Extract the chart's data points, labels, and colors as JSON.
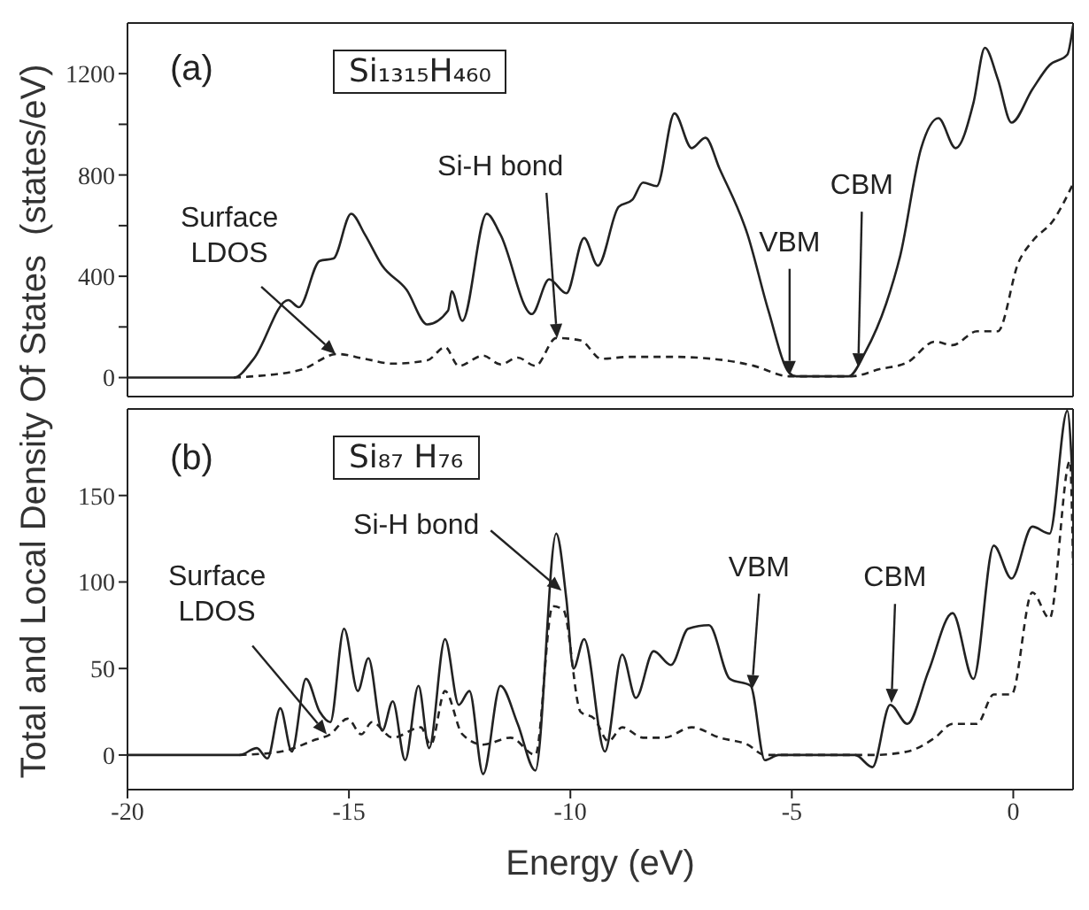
{
  "chart_data": [
    {
      "type": "line",
      "ylabel": "Total and Local Density Of States  (states/eV)",
      "xlim": [
        -20,
        1.35
      ],
      "xticks": [
        -20,
        -15,
        -10,
        -5,
        0
      ],
      "ylim": [
        -75,
        1400
      ],
      "yticks": [
        0,
        {
          "value": 200,
          "label": null
        },
        400,
        {
          "value": 600,
          "label": null
        },
        800,
        {
          "value": 1000,
          "label": null
        },
        1200
      ],
      "tick_labels": "y",
      "annotations": [
        "(a)",
        "Si₁₃₁₅H₄₆₀",
        {
          "text": "Surface\nLDOS",
          "x": -15.3,
          "y": 93
        },
        {
          "text": "Si-H  bond",
          "x": -10.3,
          "y": 156
        },
        {
          "text": "VBM",
          "x": -5.05,
          "y": 10
        },
        {
          "text": "CBM",
          "x": -3.5,
          "y": 40
        }
      ],
      "series": [
        {
          "color": "#222222",
          "line_style": "solid",
          "x": [
            -20,
            -17.6,
            -17.15,
            -16.37,
            -16.13,
            -15.66,
            -15.35,
            -14.95,
            -14.64,
            -14.25,
            -13.7,
            -13.23,
            -12.76,
            -12.68,
            -12.44,
            -11.89,
            -11.58,
            -10.87,
            -10.48,
            -10.09,
            -9.69,
            -9.38,
            -8.91,
            -8.6,
            -8.36,
            -8.05,
            -7.65,
            -7.26,
            -6.95,
            -6.63,
            -6.0,
            -5.53,
            -5.06,
            -4.9,
            -3.72,
            -3.34,
            -2.87,
            -2.55,
            -2.08,
            -1.69,
            -1.3,
            -0.9,
            -0.64,
            -0.35,
            -0.04,
            0.43,
            0.82,
            1.22,
            1.35
          ],
          "values": [
            0,
            0,
            74,
            306,
            278,
            461,
            470,
            647,
            565,
            442,
            347,
            210,
            265,
            341,
            224,
            647,
            565,
            251,
            388,
            333,
            551,
            442,
            674,
            702,
            770,
            756,
            1043,
            906,
            947,
            824,
            565,
            265,
            19,
            5,
            5,
            101,
            292,
            483,
            906,
            1024,
            906,
            1084,
            1302,
            1179,
            1007,
            1138,
            1234,
            1275,
            1390
          ]
        },
        {
          "color": "#222222",
          "line_style": "dashed",
          "x": [
            -17.6,
            -17.15,
            -16.05,
            -15.27,
            -14.64,
            -14.01,
            -13.23,
            -12.83,
            -12.52,
            -11.97,
            -11.58,
            -11.19,
            -10.79,
            -10.32,
            -9.77,
            -9.3,
            -8.67,
            -7.73,
            -6.79,
            -5.85,
            -5.06,
            -3.65,
            -3.02,
            -2.39,
            -1.77,
            -1.37,
            -0.82,
            -0.35,
            0.12,
            0.43,
            0.9,
            1.35
          ],
          "values": [
            0,
            5,
            33,
            93,
            74,
            55,
            68,
            120,
            46,
            87,
            52,
            79,
            46,
            156,
            147,
            74,
            82,
            82,
            74,
            46,
            5,
            5,
            33,
            60,
            142,
            128,
            183,
            183,
            456,
            538,
            620,
            765
          ]
        }
      ]
    },
    {
      "type": "line",
      "xlabel": "Energy  (eV)",
      "xlim": [
        -20,
        1.35
      ],
      "xticks": [
        -20,
        -15,
        -10,
        -5,
        0
      ],
      "ylim": [
        -20,
        200
      ],
      "yticks": [
        0,
        50,
        100,
        150
      ],
      "annotations": [
        "(b)",
        "Si₈₇ H₇₆",
        {
          "text": "Surface\nLDOS",
          "x": -15.5,
          "y": 12
        },
        {
          "text": "Si-H  bond",
          "x": -10.2,
          "y": 95
        },
        {
          "text": "VBM",
          "x": -5.9,
          "y": 38
        },
        {
          "text": "CBM",
          "x": -2.75,
          "y": 30
        }
      ],
      "series": [
        {
          "color": "#222222",
          "line_style": "solid",
          "x": [
            -20,
            -17.47,
            -17.08,
            -16.84,
            -16.55,
            -16.29,
            -15.97,
            -15.66,
            -15.42,
            -15.11,
            -14.8,
            -14.56,
            -14.25,
            -14.01,
            -13.73,
            -13.43,
            -13.19,
            -12.83,
            -12.52,
            -12.28,
            -11.97,
            -11.58,
            -11.19,
            -10.79,
            -10.32,
            -10.09,
            -9.93,
            -9.69,
            -9.22,
            -8.83,
            -8.52,
            -8.12,
            -7.73,
            -7.34,
            -6.87,
            -6.4,
            -5.93,
            -5.61,
            -5.3,
            -3.57,
            -3.18,
            -2.78,
            -2.39,
            -1.92,
            -1.37,
            -0.9,
            -0.44,
            -0.04,
            0.43,
            0.82,
            1.22,
            1.35
          ],
          "values": [
            0,
            0,
            4,
            -2,
            27,
            2,
            44,
            25,
            19,
            73,
            37,
            56,
            14,
            31,
            -3,
            40,
            4,
            67,
            29,
            37,
            -11,
            40,
            18,
            -9,
            128,
            90,
            50,
            67,
            2,
            58,
            33,
            60,
            52,
            73,
            75,
            44,
            40,
            -3,
            0,
            0,
            -7,
            29,
            18,
            48,
            82,
            44,
            121,
            102,
            132,
            128,
            199,
            153
          ]
        },
        {
          "color": "#222222",
          "line_style": "dashed",
          "x": [
            -17.47,
            -16.53,
            -15.74,
            -15.42,
            -15.03,
            -14.72,
            -14.48,
            -14.01,
            -13.38,
            -13.15,
            -12.83,
            -12.44,
            -11.97,
            -11.35,
            -10.79,
            -10.4,
            -10.16,
            -9.77,
            -9.46,
            -9.14,
            -8.83,
            -8.36,
            -7.89,
            -7.26,
            -6.63,
            -6.0,
            -5.61,
            -3.18,
            -2.39,
            -1.77,
            -1.37,
            -0.82,
            -0.44,
            -0.04,
            0.43,
            0.82,
            1.28,
            1.35
          ],
          "values": [
            0,
            2,
            9,
            12,
            21,
            12,
            19,
            10,
            16,
            6,
            37,
            12,
            6,
            10,
            0,
            86,
            84,
            25,
            21,
            8,
            16,
            10,
            10,
            16,
            10,
            6,
            0,
            0,
            2,
            10,
            18,
            18,
            35,
            35,
            94,
            79,
            170,
            110
          ]
        }
      ]
    }
  ]
}
